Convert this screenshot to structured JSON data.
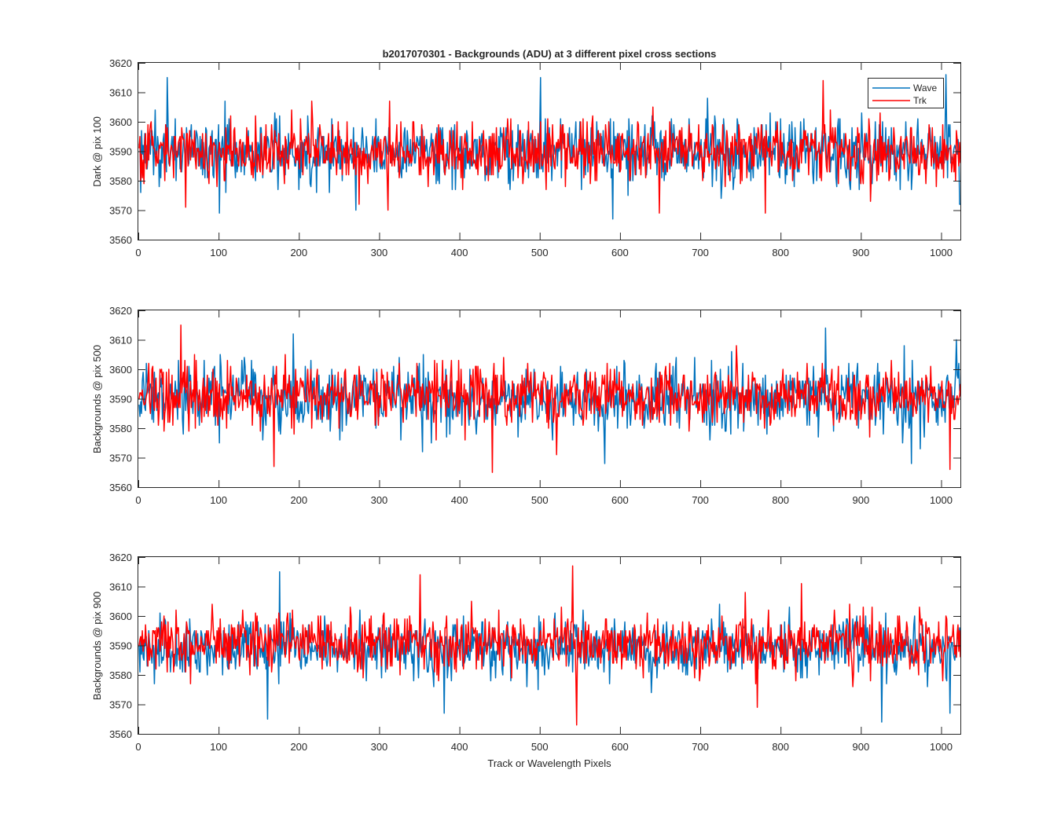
{
  "figure": {
    "title": "b2017070301 - Backgrounds (ADU) at 3 different pixel cross sections",
    "xlabel": "Track or Wavelength Pixels"
  },
  "legend": {
    "entries": [
      "Wave",
      "Trk"
    ]
  },
  "colors": {
    "wave": "#0072BD",
    "trk": "#FF0000",
    "axes": "#262626"
  },
  "chart_data": [
    {
      "type": "line",
      "title": "b2017070301 - Backgrounds (ADU) at 3 different pixel cross sections",
      "xlabel": "",
      "ylabel": "Dark @ pix 100",
      "xlim": [
        0,
        1024
      ],
      "ylim": [
        3560,
        3620
      ],
      "xticks": [
        0,
        100,
        200,
        300,
        400,
        500,
        600,
        700,
        800,
        900,
        1000
      ],
      "yticks": [
        3560,
        3570,
        3580,
        3590,
        3600,
        3610,
        3620
      ],
      "legend": "top-right",
      "grid": false,
      "n_points": 1024,
      "series": [
        {
          "name": "Wave",
          "color": "#0072BD",
          "mean": 3590,
          "spread": 5.5,
          "extremes": [
            [
              35,
              3615
            ],
            [
              500,
              3615
            ],
            [
              590,
              3567
            ],
            [
              1005,
              3616
            ],
            [
              1024,
              3572
            ],
            [
              270,
              3570
            ],
            [
              100,
              3569
            ]
          ]
        },
        {
          "name": "Trk",
          "color": "#FF0000",
          "mean": 3590,
          "spread": 5.0,
          "extremes": [
            [
              852,
              3614
            ],
            [
              310,
              3570
            ],
            [
              58,
              3571
            ],
            [
              780,
              3569
            ],
            [
              648,
              3569
            ]
          ]
        }
      ]
    },
    {
      "type": "line",
      "title": "",
      "xlabel": "",
      "ylabel": "Backgrounds @ pix 500",
      "xlim": [
        0,
        1024
      ],
      "ylim": [
        3560,
        3620
      ],
      "xticks": [
        0,
        100,
        200,
        300,
        400,
        500,
        600,
        700,
        800,
        900,
        1000
      ],
      "yticks": [
        3560,
        3570,
        3580,
        3590,
        3600,
        3610,
        3620
      ],
      "grid": false,
      "n_points": 1024,
      "series": [
        {
          "name": "Wave",
          "color": "#0072BD",
          "mean": 3590,
          "spread": 5.5,
          "extremes": [
            [
              855,
              3614
            ],
            [
              192,
              3612
            ],
            [
              580,
              3568
            ],
            [
              962,
              3568
            ],
            [
              1018,
              3610
            ]
          ]
        },
        {
          "name": "Trk",
          "color": "#FF0000",
          "mean": 3591,
          "spread": 5.0,
          "extremes": [
            [
              52,
              3615
            ],
            [
              440,
              3565
            ],
            [
              168,
              3567
            ],
            [
              1010,
              3566
            ],
            [
              520,
              3571
            ]
          ]
        }
      ]
    },
    {
      "type": "line",
      "title": "",
      "xlabel": "Track or Wavelength Pixels",
      "ylabel": "Backgrounds @ pix 900",
      "xlim": [
        0,
        1024
      ],
      "ylim": [
        3560,
        3620
      ],
      "xticks": [
        0,
        100,
        200,
        300,
        400,
        500,
        600,
        700,
        800,
        900,
        1000
      ],
      "yticks": [
        3560,
        3570,
        3580,
        3590,
        3600,
        3610,
        3620
      ],
      "grid": false,
      "n_points": 1024,
      "series": [
        {
          "name": "Wave",
          "color": "#0072BD",
          "mean": 3589,
          "spread": 5.0,
          "extremes": [
            [
              175,
              3615
            ],
            [
              160,
              3565
            ],
            [
              925,
              3564
            ],
            [
              380,
              3567
            ],
            [
              1010,
              3567
            ]
          ]
        },
        {
          "name": "Trk",
          "color": "#FF0000",
          "mean": 3591,
          "spread": 5.0,
          "extremes": [
            [
              540,
              3617
            ],
            [
              545,
              3563
            ],
            [
              350,
              3614
            ],
            [
              825,
              3611
            ],
            [
              770,
              3569
            ]
          ]
        }
      ]
    }
  ]
}
